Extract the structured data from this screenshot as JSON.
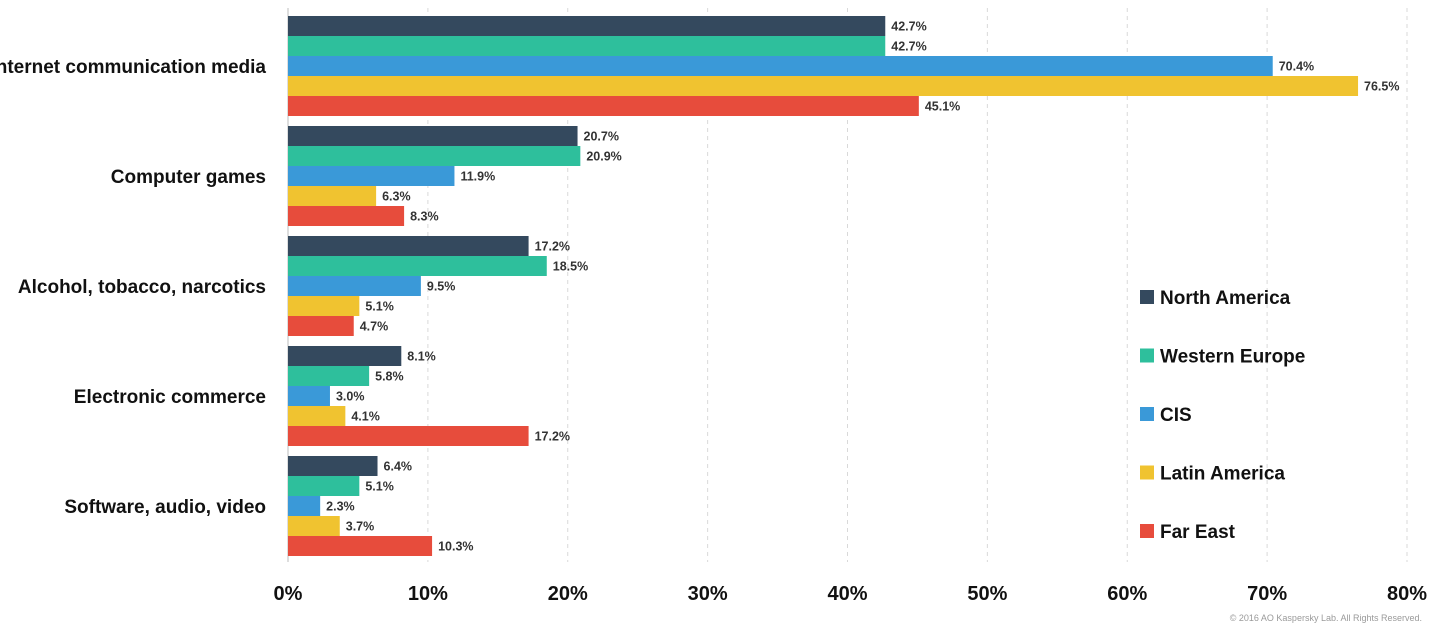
{
  "chart_data": {
    "type": "bar",
    "orientation": "horizontal",
    "categories": [
      "Internet communication media",
      "Computer games",
      "Alcohol, tobacco, narcotics",
      "Electronic commerce",
      "Software, audio, video"
    ],
    "series": [
      {
        "name": "North America",
        "color": "#34495e",
        "values": [
          42.7,
          20.7,
          17.2,
          8.1,
          6.4
        ]
      },
      {
        "name": "Western Europe",
        "color": "#2ebf9c",
        "values": [
          42.7,
          20.9,
          18.5,
          5.8,
          5.1
        ]
      },
      {
        "name": "CIS",
        "color": "#3a99d8",
        "values": [
          70.4,
          11.9,
          9.5,
          3.0,
          2.3
        ]
      },
      {
        "name": "Latin America",
        "color": "#f0c330",
        "values": [
          76.5,
          6.3,
          5.1,
          4.1,
          3.7
        ]
      },
      {
        "name": "Far East",
        "color": "#e74c3c",
        "values": [
          45.1,
          8.3,
          4.7,
          17.2,
          10.3
        ]
      }
    ],
    "data_labels": [
      [
        "42.7%",
        "20.7%",
        "17.2%",
        "8.1%",
        "6.4%"
      ],
      [
        "42.7%",
        "20.9%",
        "18.5%",
        "5.8%",
        "5.1%"
      ],
      [
        "70.4%",
        "11.9%",
        "9.5%",
        "3.0%",
        "2.3%"
      ],
      [
        "76.5%",
        "6.3%",
        "5.1%",
        "4.1%",
        "3.7%"
      ],
      [
        "45.1%",
        "8.3%",
        "4.7%",
        "17.2%",
        "10.3%"
      ]
    ],
    "xlim": [
      0,
      80
    ],
    "xticks": [
      0,
      10,
      20,
      30,
      40,
      50,
      60,
      70,
      80
    ],
    "xtick_labels": [
      "0%",
      "10%",
      "20%",
      "30%",
      "40%",
      "50%",
      "60%",
      "70%",
      "80%"
    ],
    "grid": true,
    "legend_position": "right",
    "title": "",
    "xlabel": "",
    "ylabel": ""
  },
  "credit": "© 2016 AO Kaspersky Lab. All Rights Reserved."
}
